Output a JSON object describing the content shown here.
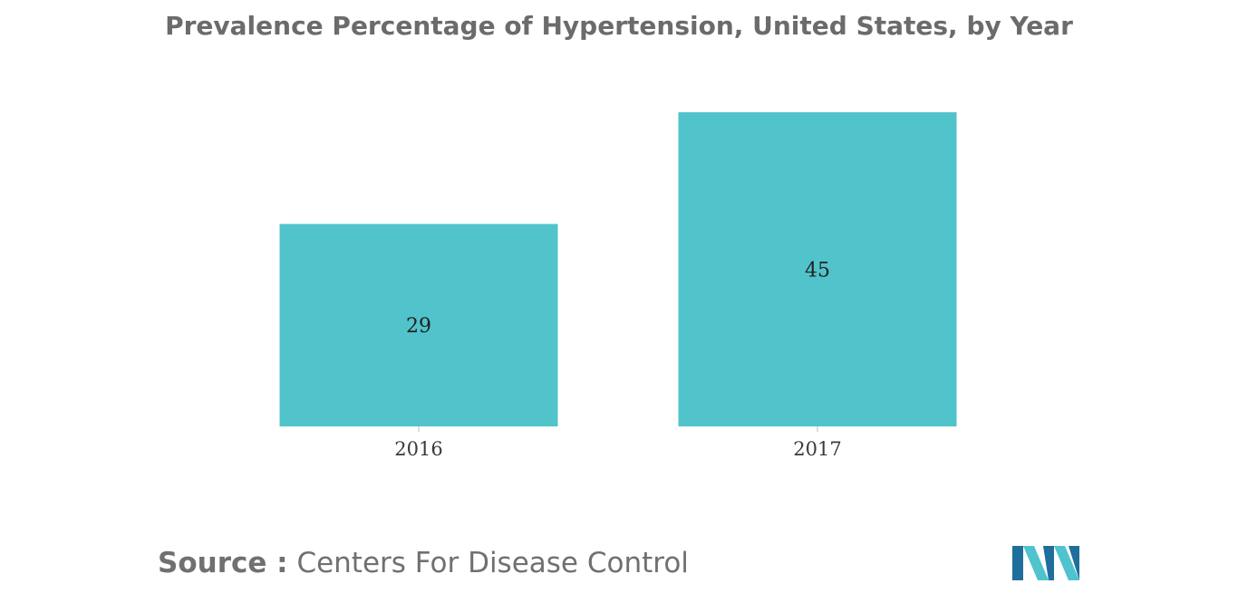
{
  "title": "Prevalence Percentage of Hypertension, United States, by Year",
  "source": {
    "label": "Source :",
    "value": "Centers For Disease Control"
  },
  "logo": {
    "icon": "mordor-intelligence-logo-icon",
    "colors": [
      "#1f6e9c",
      "#4fc3ce"
    ]
  },
  "colors": {
    "bar": "#51c3cb",
    "text": "#6b6b6b",
    "axis_label": "#3a3a3a"
  },
  "chart_data": {
    "type": "bar",
    "title": "Prevalence Percentage of Hypertension, United States, by Year",
    "categories": [
      "2016",
      "2017"
    ],
    "values": [
      29,
      45
    ],
    "data_labels": [
      "29",
      "45"
    ],
    "xlabel": "",
    "ylabel": "",
    "ylim": [
      0,
      45
    ],
    "grid": false,
    "legend": "none",
    "y_axis_visible": false
  }
}
